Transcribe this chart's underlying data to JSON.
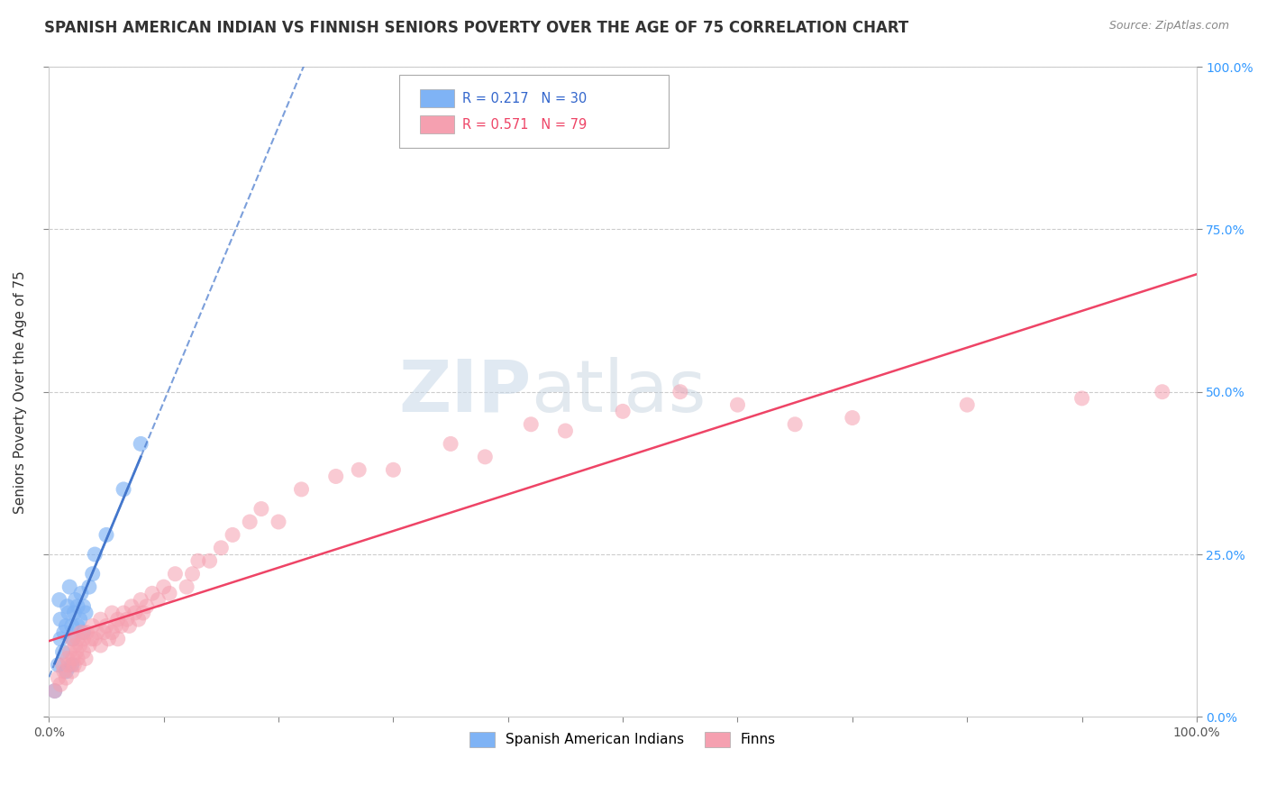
{
  "title": "SPANISH AMERICAN INDIAN VS FINNISH SENIORS POVERTY OVER THE AGE OF 75 CORRELATION CHART",
  "source": "Source: ZipAtlas.com",
  "ylabel": "Seniors Poverty Over the Age of 75",
  "xlim": [
    0,
    1
  ],
  "ylim": [
    0,
    1
  ],
  "xticks": [
    0.0,
    0.1,
    0.2,
    0.3,
    0.4,
    0.5,
    0.6,
    0.7,
    0.8,
    0.9,
    1.0
  ],
  "xtick_labels_show": [
    "0.0%",
    "",
    "",
    "",
    "",
    "",
    "",
    "",
    "",
    "",
    "100.0%"
  ],
  "yticks": [
    0.0,
    0.25,
    0.5,
    0.75,
    1.0
  ],
  "ytick_labels": [
    "0.0%",
    "25.0%",
    "50.0%",
    "75.0%",
    "100.0%"
  ],
  "blue_color": "#7fb3f5",
  "pink_color": "#f5a0b0",
  "blue_line_color": "#4477cc",
  "pink_line_color": "#ee4466",
  "legend_label_blue": "Spanish American Indians",
  "legend_label_pink": "Finns",
  "watermark_zip": "ZIP",
  "watermark_atlas": "atlas",
  "title_fontsize": 12,
  "axis_label_fontsize": 11,
  "tick_fontsize": 10,
  "blue_scatter_x": [
    0.005,
    0.008,
    0.009,
    0.01,
    0.01,
    0.012,
    0.013,
    0.015,
    0.015,
    0.016,
    0.017,
    0.018,
    0.02,
    0.02,
    0.021,
    0.022,
    0.023,
    0.025,
    0.025,
    0.027,
    0.028,
    0.03,
    0.03,
    0.032,
    0.035,
    0.038,
    0.04,
    0.05,
    0.065,
    0.08
  ],
  "blue_scatter_y": [
    0.04,
    0.08,
    0.18,
    0.12,
    0.15,
    0.1,
    0.13,
    0.07,
    0.14,
    0.17,
    0.16,
    0.2,
    0.08,
    0.14,
    0.12,
    0.16,
    0.18,
    0.14,
    0.17,
    0.15,
    0.19,
    0.13,
    0.17,
    0.16,
    0.2,
    0.22,
    0.25,
    0.28,
    0.35,
    0.42
  ],
  "pink_scatter_x": [
    0.005,
    0.008,
    0.01,
    0.012,
    0.013,
    0.015,
    0.016,
    0.017,
    0.018,
    0.02,
    0.02,
    0.021,
    0.022,
    0.023,
    0.024,
    0.025,
    0.025,
    0.026,
    0.027,
    0.028,
    0.03,
    0.03,
    0.032,
    0.033,
    0.035,
    0.037,
    0.038,
    0.04,
    0.042,
    0.045,
    0.045,
    0.048,
    0.05,
    0.052,
    0.055,
    0.055,
    0.058,
    0.06,
    0.06,
    0.063,
    0.065,
    0.068,
    0.07,
    0.072,
    0.075,
    0.078,
    0.08,
    0.082,
    0.085,
    0.09,
    0.095,
    0.1,
    0.105,
    0.11,
    0.12,
    0.125,
    0.13,
    0.14,
    0.15,
    0.16,
    0.175,
    0.185,
    0.2,
    0.22,
    0.25,
    0.27,
    0.3,
    0.35,
    0.38,
    0.42,
    0.45,
    0.5,
    0.55,
    0.6,
    0.65,
    0.7,
    0.8,
    0.9,
    0.97
  ],
  "pink_scatter_y": [
    0.04,
    0.06,
    0.05,
    0.08,
    0.07,
    0.06,
    0.09,
    0.08,
    0.1,
    0.07,
    0.12,
    0.09,
    0.08,
    0.11,
    0.1,
    0.09,
    0.12,
    0.08,
    0.11,
    0.13,
    0.1,
    0.12,
    0.09,
    0.13,
    0.11,
    0.12,
    0.14,
    0.12,
    0.13,
    0.11,
    0.15,
    0.13,
    0.14,
    0.12,
    0.13,
    0.16,
    0.14,
    0.12,
    0.15,
    0.14,
    0.16,
    0.15,
    0.14,
    0.17,
    0.16,
    0.15,
    0.18,
    0.16,
    0.17,
    0.19,
    0.18,
    0.2,
    0.19,
    0.22,
    0.2,
    0.22,
    0.24,
    0.24,
    0.26,
    0.28,
    0.3,
    0.32,
    0.3,
    0.35,
    0.37,
    0.38,
    0.38,
    0.42,
    0.4,
    0.45,
    0.44,
    0.47,
    0.5,
    0.48,
    0.45,
    0.46,
    0.48,
    0.49,
    0.5
  ],
  "grid_color": "#cccccc",
  "background_color": "#ffffff",
  "right_tick_color": "#3399ff",
  "blue_trend_start_x": 0.0,
  "blue_trend_end_x": 1.0,
  "pink_trend_start_x": 0.0,
  "pink_trend_end_x": 1.0
}
